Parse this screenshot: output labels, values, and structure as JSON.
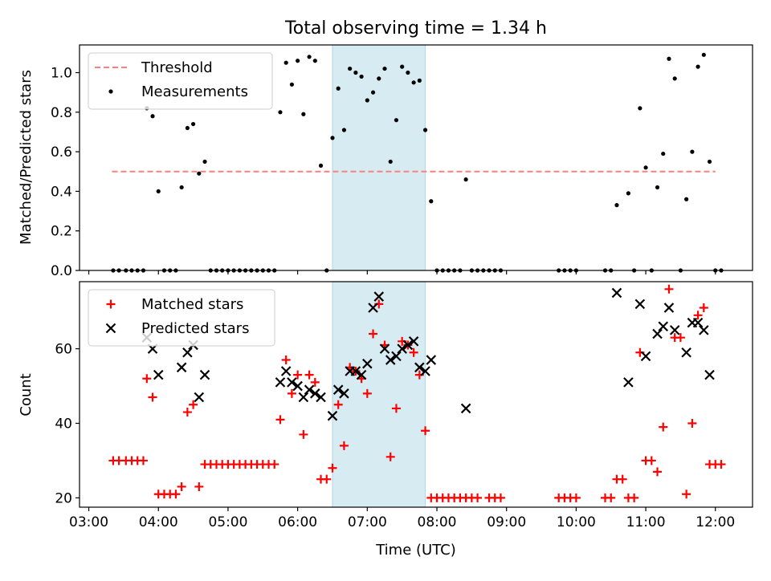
{
  "figure": {
    "title": "Total observing time = 1.34 h",
    "xlabel": "Time (UTC)"
  },
  "colors": {
    "threshold": "#ff7f7f",
    "measurements": "#000000",
    "matched": "#ff0000",
    "predicted": "#000000",
    "highlight": "#add8e6"
  },
  "chart_data": [
    {
      "type": "scatter",
      "ylabel": "Matched/Predicted stars",
      "ylim": [
        0,
        1.14
      ],
      "xlim": [
        "02:52",
        "12:32"
      ],
      "yticks": [
        "0.0",
        "0.2",
        "0.4",
        "0.6",
        "0.8",
        "1.0"
      ],
      "highlight_span": [
        "06:30",
        "07:50"
      ],
      "legend": {
        "position": "top-left"
      },
      "threshold": {
        "name": "Threshold",
        "style": "dashed",
        "value": 0.5,
        "x_range": [
          "03:20",
          "12:00"
        ]
      },
      "series": [
        {
          "name": "Measurements",
          "marker": "dot",
          "points": [
            [
              "03:21",
              0
            ],
            [
              "03:26",
              0
            ],
            [
              "03:32",
              0
            ],
            [
              "03:37",
              0
            ],
            [
              "03:42",
              0
            ],
            [
              "03:47",
              0
            ],
            [
              "03:50",
              0.82
            ],
            [
              "03:55",
              0.78
            ],
            [
              "04:00",
              0.4
            ],
            [
              "04:05",
              0
            ],
            [
              "04:10",
              0
            ],
            [
              "04:15",
              0
            ],
            [
              "04:20",
              0.42
            ],
            [
              "04:25",
              0.72
            ],
            [
              "04:30",
              0.74
            ],
            [
              "04:35",
              0.49
            ],
            [
              "04:40",
              0.55
            ],
            [
              "04:45",
              0
            ],
            [
              "04:50",
              0
            ],
            [
              "04:55",
              0
            ],
            [
              "05:00",
              0
            ],
            [
              "05:05",
              0
            ],
            [
              "05:10",
              0
            ],
            [
              "05:15",
              0
            ],
            [
              "05:20",
              0
            ],
            [
              "05:25",
              0
            ],
            [
              "05:30",
              0
            ],
            [
              "05:35",
              0
            ],
            [
              "05:40",
              0
            ],
            [
              "05:45",
              0.8
            ],
            [
              "05:50",
              1.05
            ],
            [
              "05:55",
              0.94
            ],
            [
              "06:00",
              1.06
            ],
            [
              "06:05",
              0.79
            ],
            [
              "06:10",
              1.08
            ],
            [
              "06:15",
              1.06
            ],
            [
              "06:20",
              0.53
            ],
            [
              "06:25",
              0
            ],
            [
              "06:30",
              0.67
            ],
            [
              "06:35",
              0.92
            ],
            [
              "06:40",
              0.71
            ],
            [
              "06:45",
              1.02
            ],
            [
              "06:50",
              1.0
            ],
            [
              "06:55",
              0.98
            ],
            [
              "07:00",
              0.86
            ],
            [
              "07:05",
              0.9
            ],
            [
              "07:10",
              0.97
            ],
            [
              "07:15",
              1.02
            ],
            [
              "07:20",
              0.55
            ],
            [
              "07:25",
              0.76
            ],
            [
              "07:30",
              1.03
            ],
            [
              "07:35",
              1.0
            ],
            [
              "07:40",
              0.95
            ],
            [
              "07:45",
              0.96
            ],
            [
              "07:50",
              0.71
            ],
            [
              "07:55",
              0.35
            ],
            [
              "08:00",
              0
            ],
            [
              "08:05",
              0
            ],
            [
              "08:10",
              0
            ],
            [
              "08:15",
              0
            ],
            [
              "08:20",
              0
            ],
            [
              "08:25",
              0.46
            ],
            [
              "08:30",
              0
            ],
            [
              "08:35",
              0
            ],
            [
              "08:40",
              0
            ],
            [
              "08:45",
              0
            ],
            [
              "08:50",
              0
            ],
            [
              "08:55",
              0
            ],
            [
              "09:45",
              0
            ],
            [
              "09:50",
              0
            ],
            [
              "09:55",
              0
            ],
            [
              "10:00",
              0
            ],
            [
              "10:25",
              0
            ],
            [
              "10:30",
              0
            ],
            [
              "10:35",
              0.33
            ],
            [
              "10:45",
              0.39
            ],
            [
              "10:50",
              0
            ],
            [
              "10:55",
              0.82
            ],
            [
              "11:00",
              0.52
            ],
            [
              "11:05",
              0
            ],
            [
              "11:10",
              0.42
            ],
            [
              "11:15",
              0.59
            ],
            [
              "11:20",
              1.07
            ],
            [
              "11:25",
              0.97
            ],
            [
              "11:30",
              0
            ],
            [
              "11:35",
              0.36
            ],
            [
              "11:40",
              0.6
            ],
            [
              "11:45",
              1.03
            ],
            [
              "11:50",
              1.09
            ],
            [
              "11:55",
              0.55
            ],
            [
              "12:00",
              0
            ],
            [
              "12:05",
              0
            ]
          ]
        }
      ]
    },
    {
      "type": "scatter",
      "ylabel": "Count",
      "ylim": [
        17.5,
        78
      ],
      "xlim": [
        "02:52",
        "12:32"
      ],
      "yticks": [
        "20",
        "40",
        "60"
      ],
      "xticks": [
        "03:00",
        "04:00",
        "05:00",
        "06:00",
        "07:00",
        "08:00",
        "09:00",
        "10:00",
        "11:00",
        "12:00"
      ],
      "highlight_span": [
        "06:30",
        "07:50"
      ],
      "legend": {
        "position": "top-left"
      },
      "series": [
        {
          "name": "Matched stars",
          "marker": "plus",
          "points": [
            [
              "03:21",
              30
            ],
            [
              "03:26",
              30
            ],
            [
              "03:32",
              30
            ],
            [
              "03:37",
              30
            ],
            [
              "03:42",
              30
            ],
            [
              "03:47",
              30
            ],
            [
              "03:50",
              52
            ],
            [
              "03:55",
              47
            ],
            [
              "04:00",
              21
            ],
            [
              "04:05",
              21
            ],
            [
              "04:10",
              21
            ],
            [
              "04:15",
              21
            ],
            [
              "04:20",
              23
            ],
            [
              "04:25",
              43
            ],
            [
              "04:30",
              45
            ],
            [
              "04:35",
              23
            ],
            [
              "04:40",
              29
            ],
            [
              "04:45",
              29
            ],
            [
              "04:50",
              29
            ],
            [
              "04:55",
              29
            ],
            [
              "05:00",
              29
            ],
            [
              "05:05",
              29
            ],
            [
              "05:10",
              29
            ],
            [
              "05:15",
              29
            ],
            [
              "05:20",
              29
            ],
            [
              "05:25",
              29
            ],
            [
              "05:30",
              29
            ],
            [
              "05:35",
              29
            ],
            [
              "05:40",
              29
            ],
            [
              "05:45",
              41
            ],
            [
              "05:50",
              57
            ],
            [
              "05:55",
              48
            ],
            [
              "06:00",
              53
            ],
            [
              "06:05",
              37
            ],
            [
              "06:10",
              53
            ],
            [
              "06:15",
              51
            ],
            [
              "06:20",
              25
            ],
            [
              "06:25",
              25
            ],
            [
              "06:30",
              28
            ],
            [
              "06:35",
              45
            ],
            [
              "06:40",
              34
            ],
            [
              "06:45",
              55
            ],
            [
              "06:50",
              54
            ],
            [
              "06:55",
              52
            ],
            [
              "07:00",
              48
            ],
            [
              "07:05",
              64
            ],
            [
              "07:10",
              72
            ],
            [
              "07:15",
              61
            ],
            [
              "07:20",
              31
            ],
            [
              "07:25",
              44
            ],
            [
              "07:30",
              62
            ],
            [
              "07:35",
              61
            ],
            [
              "07:40",
              59
            ],
            [
              "07:45",
              53
            ],
            [
              "07:50",
              38
            ],
            [
              "07:55",
              20
            ],
            [
              "08:00",
              20
            ],
            [
              "08:05",
              20
            ],
            [
              "08:10",
              20
            ],
            [
              "08:15",
              20
            ],
            [
              "08:20",
              20
            ],
            [
              "08:25",
              20
            ],
            [
              "08:30",
              20
            ],
            [
              "08:35",
              20
            ],
            [
              "08:45",
              20
            ],
            [
              "08:50",
              20
            ],
            [
              "08:55",
              20
            ],
            [
              "09:45",
              20
            ],
            [
              "09:50",
              20
            ],
            [
              "09:55",
              20
            ],
            [
              "10:00",
              20
            ],
            [
              "10:25",
              20
            ],
            [
              "10:30",
              20
            ],
            [
              "10:35",
              25
            ],
            [
              "10:40",
              25
            ],
            [
              "10:45",
              20
            ],
            [
              "10:50",
              20
            ],
            [
              "10:55",
              59
            ],
            [
              "11:00",
              30
            ],
            [
              "11:05",
              30
            ],
            [
              "11:10",
              27
            ],
            [
              "11:15",
              39
            ],
            [
              "11:20",
              76
            ],
            [
              "11:25",
              63
            ],
            [
              "11:30",
              63
            ],
            [
              "11:35",
              21
            ],
            [
              "11:40",
              40
            ],
            [
              "11:45",
              69
            ],
            [
              "11:50",
              71
            ],
            [
              "11:55",
              29
            ],
            [
              "12:00",
              29
            ],
            [
              "12:05",
              29
            ]
          ]
        },
        {
          "name": "Predicted stars",
          "marker": "x",
          "points": [
            [
              "03:50",
              63
            ],
            [
              "03:55",
              60
            ],
            [
              "04:00",
              53
            ],
            [
              "04:20",
              55
            ],
            [
              "04:25",
              59
            ],
            [
              "04:30",
              61
            ],
            [
              "04:35",
              47
            ],
            [
              "04:40",
              53
            ],
            [
              "05:45",
              51
            ],
            [
              "05:50",
              54
            ],
            [
              "05:55",
              51
            ],
            [
              "06:00",
              50
            ],
            [
              "06:05",
              47
            ],
            [
              "06:10",
              49
            ],
            [
              "06:15",
              48
            ],
            [
              "06:20",
              47
            ],
            [
              "06:30",
              42
            ],
            [
              "06:35",
              49
            ],
            [
              "06:40",
              48
            ],
            [
              "06:45",
              54
            ],
            [
              "06:50",
              54
            ],
            [
              "06:55",
              53
            ],
            [
              "07:00",
              56
            ],
            [
              "07:05",
              71
            ],
            [
              "07:10",
              74
            ],
            [
              "07:15",
              60
            ],
            [
              "07:20",
              57
            ],
            [
              "07:25",
              58
            ],
            [
              "07:30",
              60
            ],
            [
              "07:35",
              61
            ],
            [
              "07:40",
              62
            ],
            [
              "07:45",
              55
            ],
            [
              "07:50",
              54
            ],
            [
              "07:55",
              57
            ],
            [
              "08:25",
              44
            ],
            [
              "10:35",
              75
            ],
            [
              "10:45",
              51
            ],
            [
              "10:55",
              72
            ],
            [
              "11:00",
              58
            ],
            [
              "11:10",
              64
            ],
            [
              "11:15",
              66
            ],
            [
              "11:20",
              71
            ],
            [
              "11:25",
              65
            ],
            [
              "11:35",
              59
            ],
            [
              "11:40",
              67
            ],
            [
              "11:45",
              67
            ],
            [
              "11:50",
              65
            ],
            [
              "11:55",
              53
            ]
          ]
        }
      ]
    }
  ]
}
